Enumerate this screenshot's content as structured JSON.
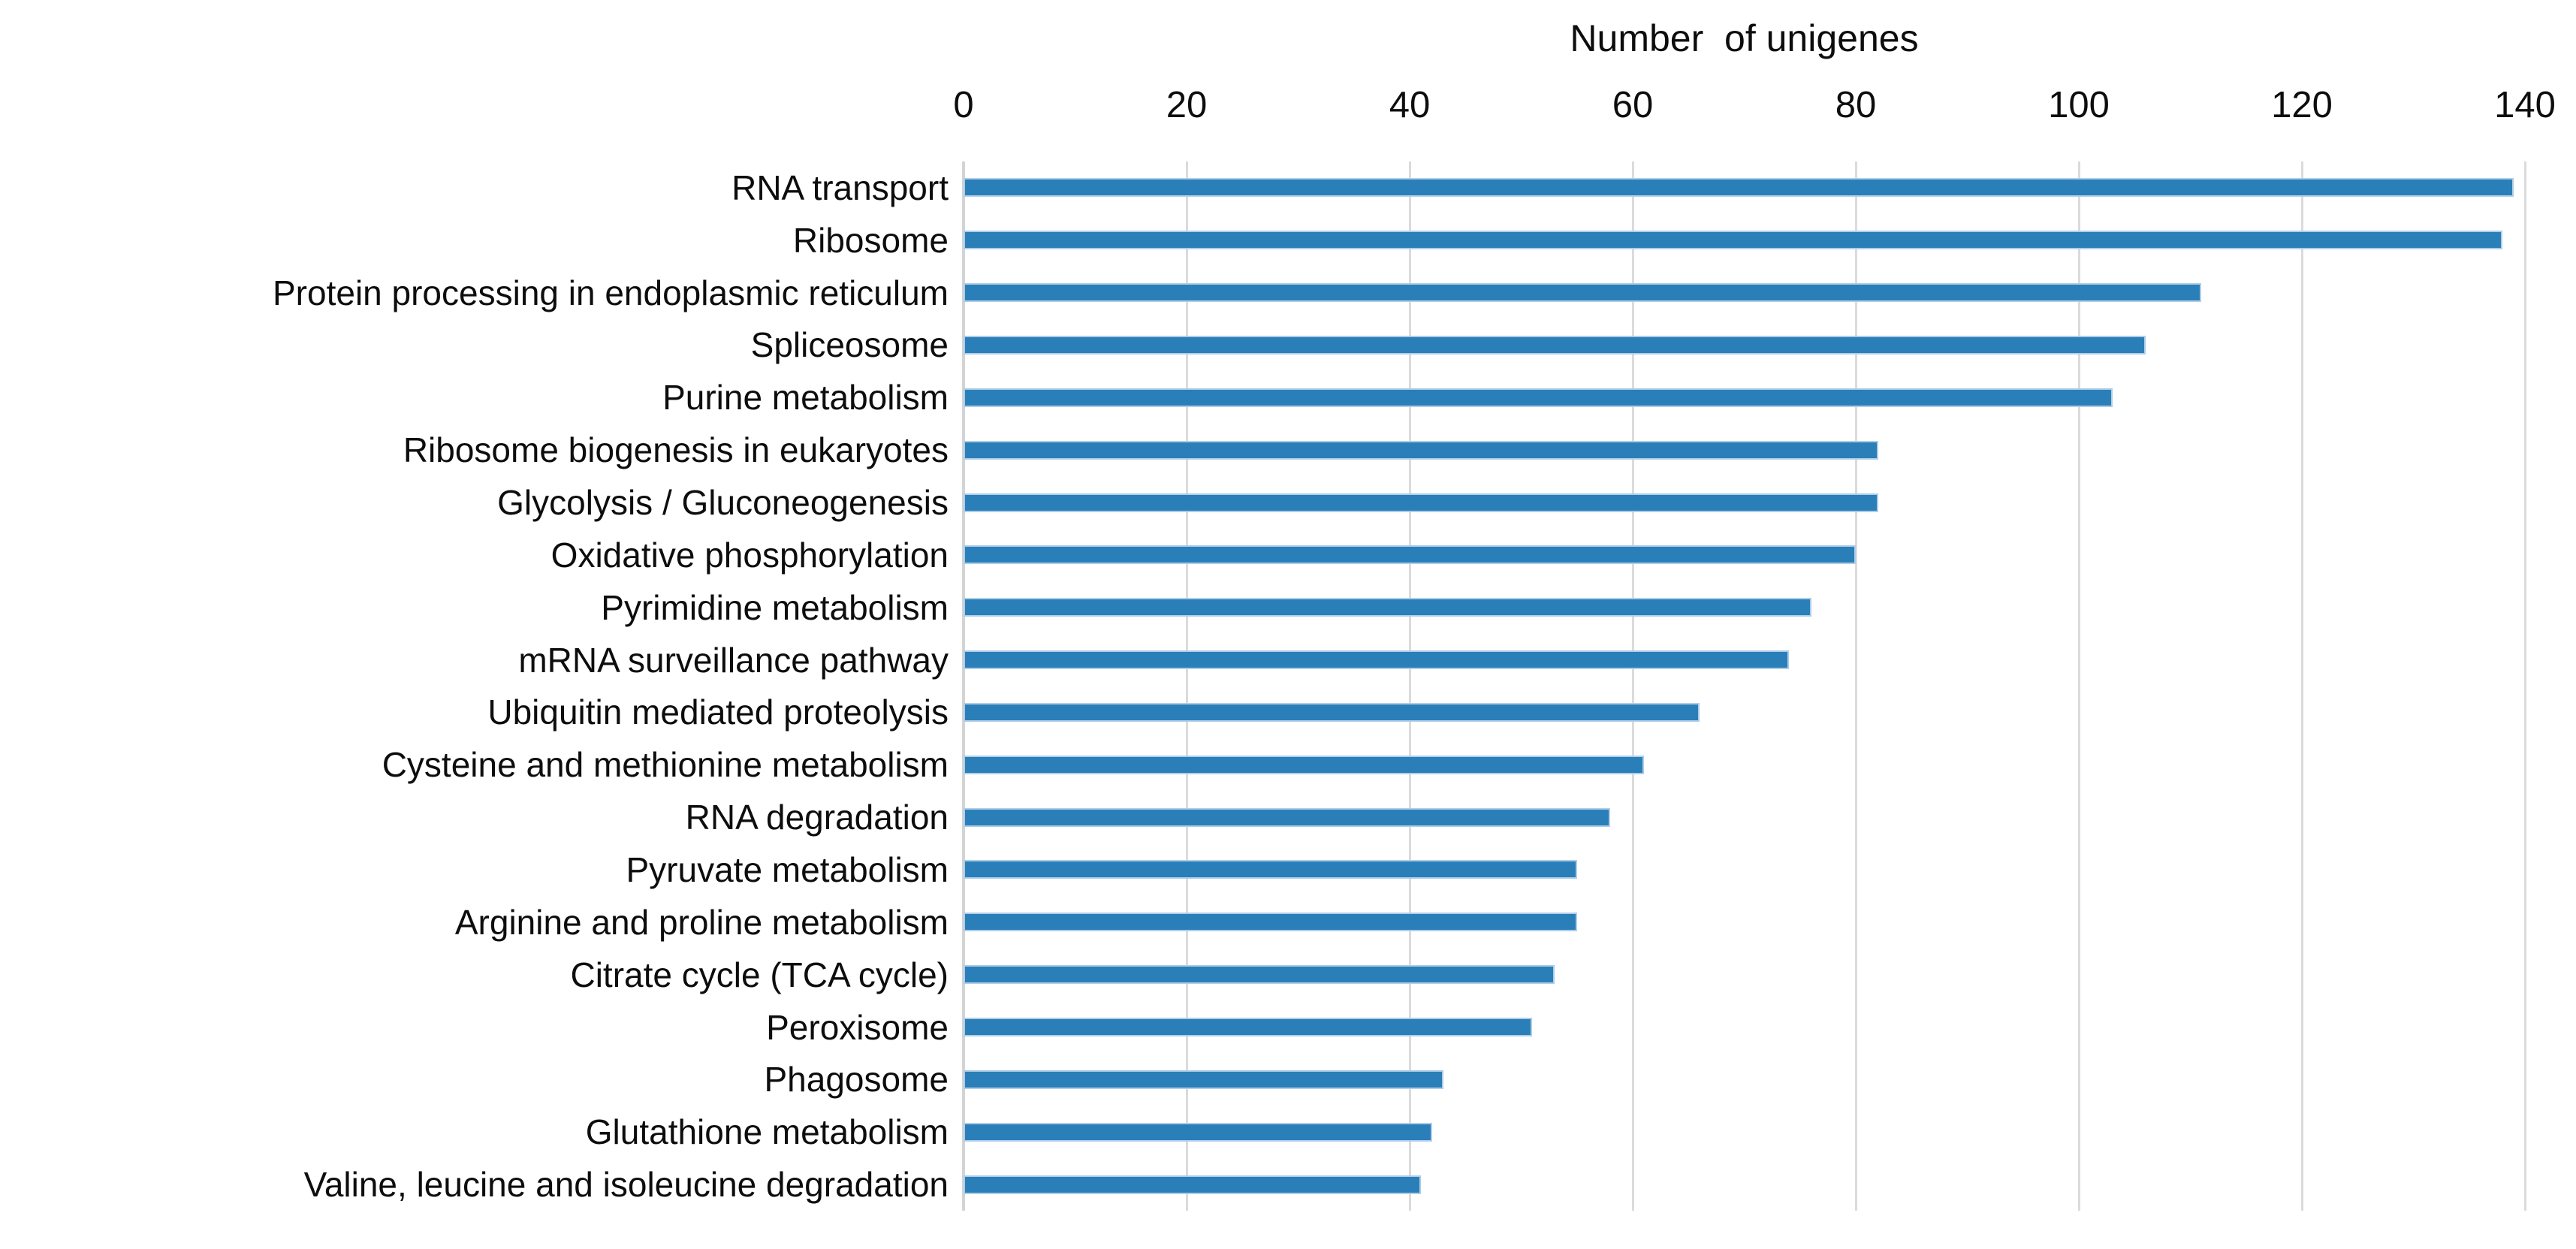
{
  "chart_data": {
    "type": "bar",
    "orientation": "horizontal",
    "title": "Number  of unigenes",
    "xlabel": "Number  of unigenes",
    "ylabel": "",
    "xlim": [
      0,
      140
    ],
    "xticks": [
      0,
      20,
      40,
      60,
      80,
      100,
      120,
      140
    ],
    "xticks_position": "top",
    "grid": "vertical-light-gray",
    "legend": "none",
    "bar_color": "#2a7fb8",
    "bar_border_color": "#aecde8",
    "gridline_color": "#dbdbdb",
    "categories": [
      "RNA transport",
      "Ribosome",
      "Protein processing in endoplasmic reticulum",
      "Spliceosome",
      "Purine metabolism",
      "Ribosome biogenesis in eukaryotes",
      "Glycolysis / Gluconeogenesis",
      "Oxidative phosphorylation",
      "Pyrimidine metabolism",
      "mRNA surveillance pathway",
      "Ubiquitin mediated proteolysis",
      "Cysteine and methionine metabolism",
      "RNA degradation",
      "Pyruvate metabolism",
      "Arginine and proline metabolism",
      "Citrate cycle (TCA cycle)",
      "Peroxisome",
      "Phagosome",
      "Glutathione metabolism",
      "Valine, leucine and isoleucine degradation"
    ],
    "values": [
      139,
      138,
      111,
      106,
      103,
      82,
      82,
      80,
      76,
      74,
      66,
      61,
      58,
      55,
      55,
      53,
      51,
      43,
      42,
      41
    ]
  }
}
